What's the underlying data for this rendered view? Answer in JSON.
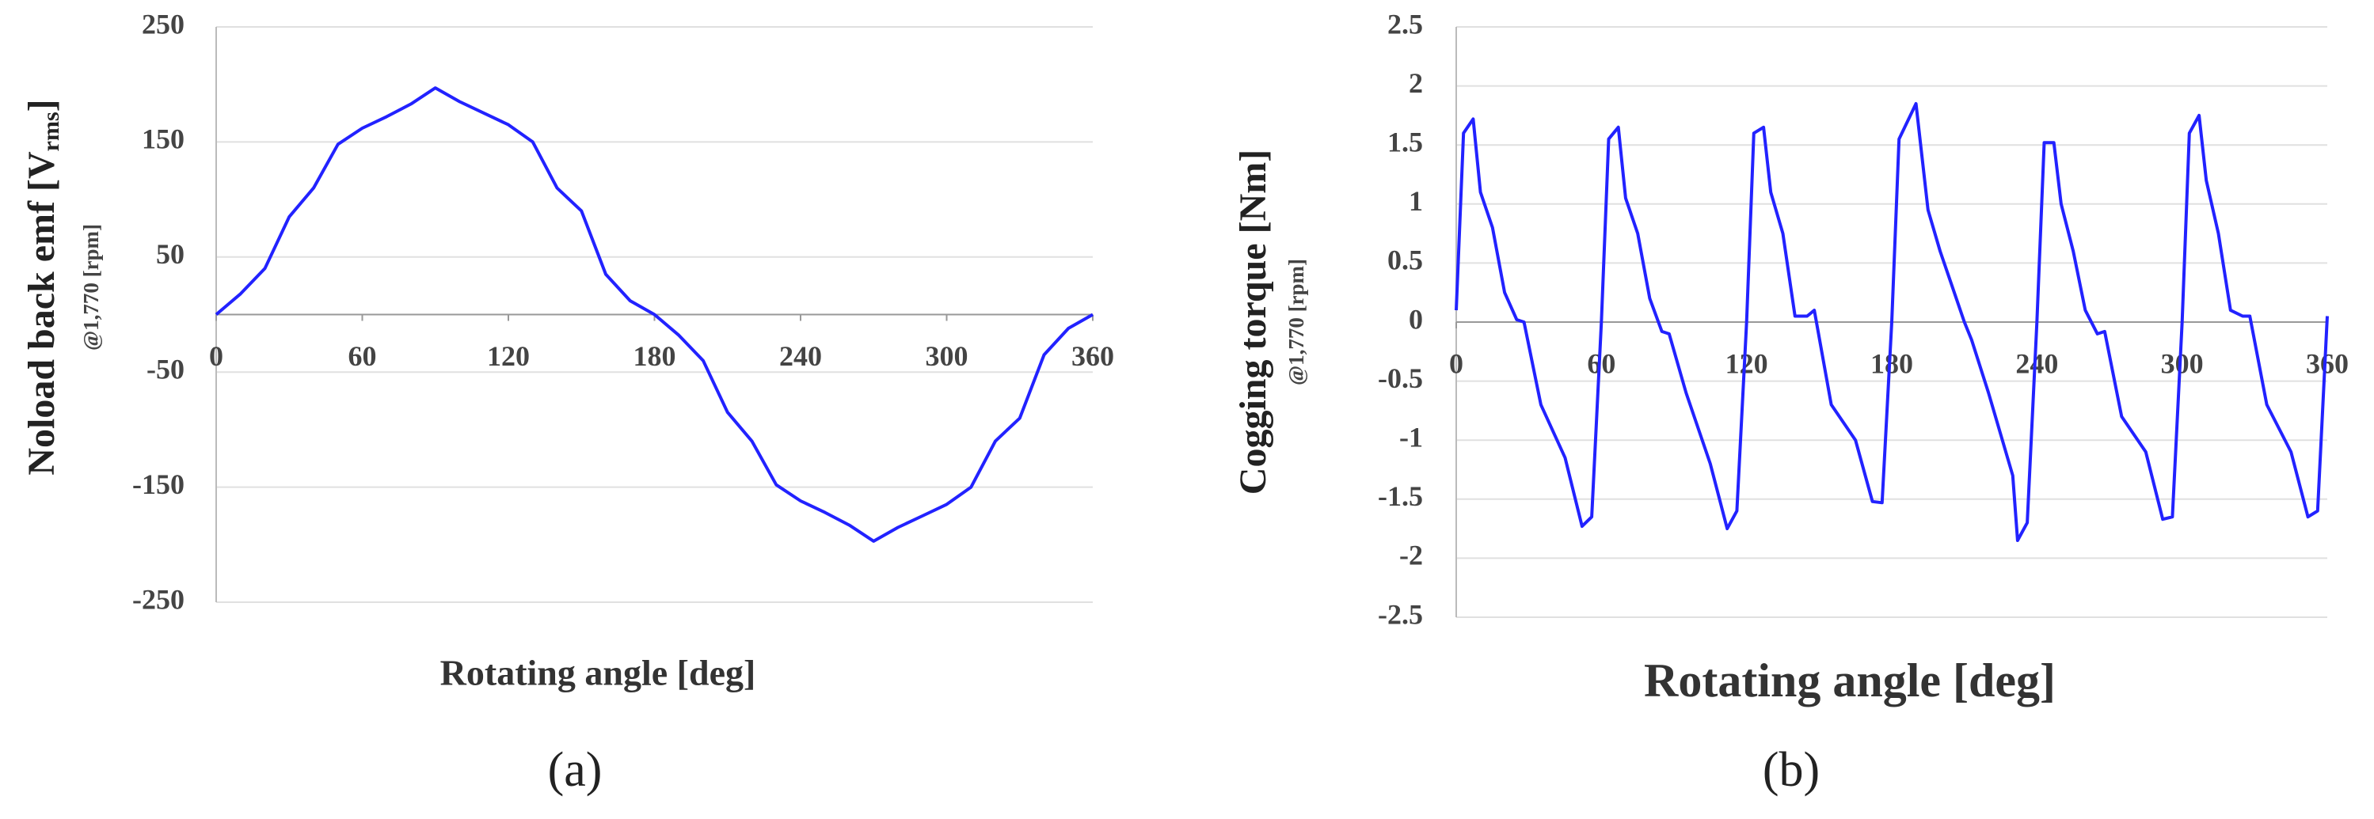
{
  "chart_data": [
    {
      "type": "line",
      "y_label": "Noload back emf [V",
      "y_label_sub": "rms",
      "y_label_end": "]",
      "y_label_note": "@1,770 [rpm]",
      "x_label": "Rotating angle [deg]",
      "caption": "(a)",
      "x": [
        0,
        10,
        20,
        30,
        40,
        50,
        60,
        70,
        80,
        90,
        100,
        110,
        120,
        130,
        140,
        150,
        160,
        170,
        180,
        190,
        200,
        210,
        220,
        230,
        240,
        250,
        260,
        270,
        280,
        290,
        300,
        310,
        320,
        330,
        340,
        350,
        360
      ],
      "values": [
        0,
        18,
        40,
        85,
        110,
        148,
        162,
        172,
        183,
        197,
        185,
        175,
        165,
        150,
        110,
        90,
        35,
        12,
        0,
        -18,
        -40,
        -85,
        -110,
        -148,
        -162,
        -172,
        -183,
        -197,
        -185,
        -175,
        -165,
        -150,
        -110,
        -90,
        -35,
        -12,
        0
      ],
      "color": "#2222ff",
      "xlim": [
        0,
        360
      ],
      "xticks": [
        0,
        60,
        120,
        180,
        240,
        300,
        360
      ],
      "ylim": [
        -250,
        250
      ],
      "yticks": [
        -250,
        -150,
        -50,
        50,
        150,
        250
      ],
      "grid": true
    },
    {
      "type": "line",
      "y_label": "Cogging torque [Nm]",
      "y_label_note": "@1,770 [rpm]",
      "x_label": "Rotating angle [deg]",
      "caption": "(b)",
      "x": [
        0,
        3,
        7,
        10,
        15,
        20,
        25,
        28,
        35,
        45,
        52,
        56,
        60,
        63,
        67,
        70,
        75,
        80,
        85,
        88,
        95,
        105,
        112,
        116,
        120,
        123,
        127,
        130,
        135,
        140,
        145,
        148,
        155,
        165,
        172,
        176,
        180,
        183,
        190,
        195,
        200,
        205,
        210,
        213,
        220,
        230,
        232,
        236,
        240,
        243,
        247,
        250,
        255,
        260,
        265,
        268,
        275,
        285,
        292,
        296,
        300,
        303,
        307,
        310,
        315,
        320,
        325,
        328,
        335,
        345,
        352,
        356,
        360
      ],
      "values": [
        0.1,
        1.6,
        1.72,
        1.1,
        0.8,
        0.25,
        0.02,
        0,
        -0.7,
        -1.15,
        -1.73,
        -1.65,
        0,
        1.55,
        1.65,
        1.05,
        0.75,
        0.2,
        -0.08,
        -0.1,
        -0.6,
        -1.2,
        -1.75,
        -1.6,
        0,
        1.6,
        1.65,
        1.1,
        0.75,
        0.05,
        0.05,
        0.1,
        -0.7,
        -1,
        -1.52,
        -1.53,
        0,
        1.55,
        1.85,
        0.95,
        0.6,
        0.3,
        0,
        -0.15,
        -0.6,
        -1.3,
        -1.85,
        -1.7,
        0,
        1.52,
        1.52,
        1.0,
        0.6,
        0.1,
        -0.1,
        -0.08,
        -0.8,
        -1.1,
        -1.67,
        -1.65,
        0,
        1.6,
        1.75,
        1.2,
        0.75,
        0.1,
        0.05,
        0.05,
        -0.7,
        -1.1,
        -1.65,
        -1.6,
        0.05
      ],
      "color": "#2222ff",
      "xlim": [
        0,
        360
      ],
      "xticks": [
        0,
        60,
        120,
        180,
        240,
        300,
        360
      ],
      "ylim": [
        -2.5,
        2.5
      ],
      "yticks": [
        -2.5,
        -2,
        -1.5,
        -1,
        -0.5,
        0,
        0.5,
        1,
        1.5,
        2,
        2.5
      ],
      "grid": true
    }
  ]
}
